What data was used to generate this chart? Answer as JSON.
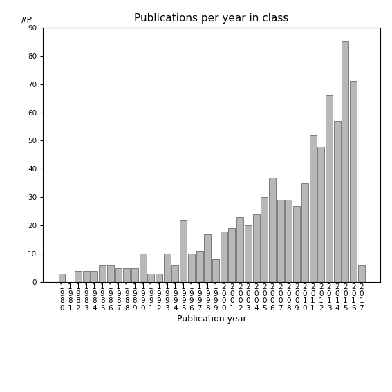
{
  "title": "Publications per year in class",
  "xlabel": "Publication year",
  "ylabel": "#P",
  "ylim": [
    0,
    90
  ],
  "yticks": [
    0,
    10,
    20,
    30,
    40,
    50,
    60,
    70,
    80,
    90
  ],
  "years": [
    "1980",
    "1981",
    "1982",
    "1983",
    "1984",
    "1985",
    "1986",
    "1987",
    "1988",
    "1989",
    "1990",
    "1991",
    "1992",
    "1993",
    "1994",
    "1995",
    "1996",
    "1997",
    "1998",
    "1999",
    "2000",
    "2001",
    "2002",
    "2003",
    "2004",
    "2005",
    "2006",
    "2007",
    "2008",
    "2009",
    "2010",
    "2011",
    "2012",
    "2013",
    "2014",
    "2015",
    "2016",
    "2017"
  ],
  "values": [
    3,
    0,
    4,
    4,
    4,
    6,
    6,
    5,
    5,
    5,
    10,
    3,
    3,
    10,
    6,
    22,
    10,
    11,
    17,
    8,
    18,
    19,
    23,
    20,
    24,
    30,
    37,
    29,
    29,
    27,
    35,
    52,
    48,
    66,
    57,
    85,
    71,
    6
  ],
  "bar_color": "#b8b8b8",
  "bar_edgecolor": "#555555",
  "background_color": "#ffffff",
  "title_fontsize": 11,
  "label_fontsize": 9,
  "tick_fontsize": 7.5
}
